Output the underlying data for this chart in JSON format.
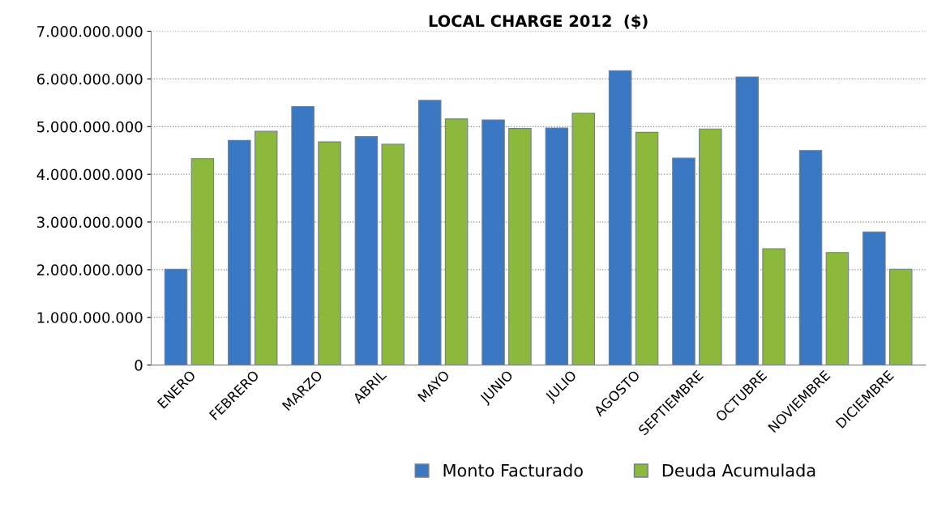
{
  "chart_data": {
    "type": "bar",
    "title": "LOCAL CHARGE 2012  ($)",
    "categories": [
      "ENERO",
      "FEBRERO",
      "MARZO",
      "ABRIL",
      "MAYO",
      "JUNIO",
      "JULIO",
      "AGOSTO",
      "SEPTIEMBRE",
      "OCTUBRE",
      "NOVIEMBRE",
      "DICIEMBRE"
    ],
    "series": [
      {
        "name": "Monto Facturado",
        "color": "#3a78c4",
        "values": [
          2010000000,
          4710000000,
          5420000000,
          4790000000,
          5550000000,
          5140000000,
          4970000000,
          6170000000,
          4340000000,
          6040000000,
          4500000000,
          2790000000
        ]
      },
      {
        "name": "Deuda Acumulada",
        "color": "#8cb83c",
        "values": [
          4330000000,
          4900000000,
          4680000000,
          4630000000,
          5160000000,
          4960000000,
          5280000000,
          4880000000,
          4950000000,
          2440000000,
          2360000000,
          2010000000
        ]
      }
    ],
    "ylim": [
      0,
      7000000000
    ],
    "yticks": [
      {
        "value": 0,
        "label": "0"
      },
      {
        "value": 1000000000,
        "label": "1.000.000.000"
      },
      {
        "value": 2000000000,
        "label": "2.000.000.000"
      },
      {
        "value": 3000000000,
        "label": "3.000.000.000"
      },
      {
        "value": 4000000000,
        "label": "4.000.000.000"
      },
      {
        "value": 5000000000,
        "label": "5.000.000.000"
      },
      {
        "value": 6000000000,
        "label": "6.000.000.000"
      },
      {
        "value": 7000000000,
        "label": "7.000.000.000"
      }
    ],
    "grid": "y",
    "legend": "bottom"
  }
}
